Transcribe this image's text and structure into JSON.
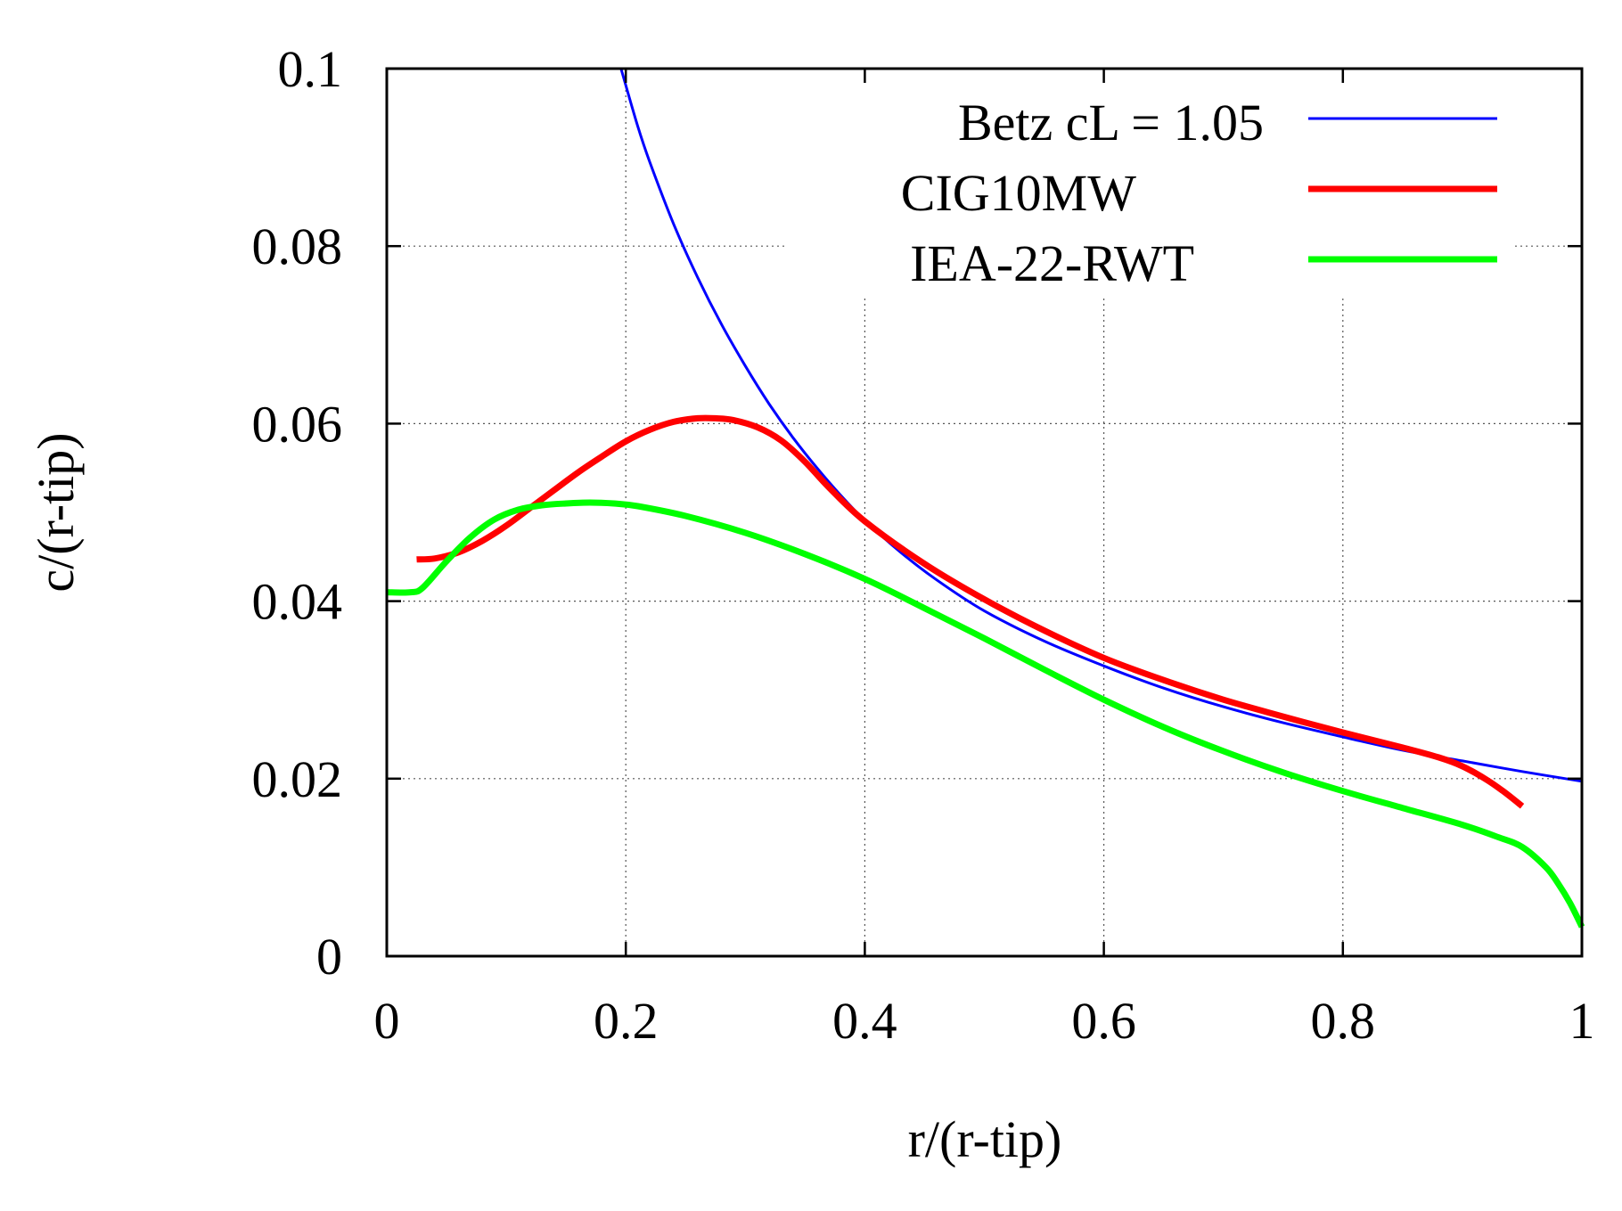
{
  "chart_data": {
    "type": "line",
    "title": "",
    "xlabel": "r/(r-tip)",
    "ylabel": "c/(r-tip)",
    "xlim": [
      0,
      1
    ],
    "ylim": [
      0,
      0.1
    ],
    "xticks": [
      0,
      0.2,
      0.4,
      0.6,
      0.8,
      1
    ],
    "xtick_labels": [
      "0",
      "0.2",
      "0.4",
      "0.6",
      "0.8",
      "1"
    ],
    "yticks": [
      0,
      0.02,
      0.04,
      0.06,
      0.08,
      0.1
    ],
    "ytick_labels": [
      "0",
      "0.02",
      "0.04",
      "0.06",
      "0.08",
      "0.1"
    ],
    "grid": true,
    "legend_position": "top-right",
    "series": [
      {
        "name": "Betz cL = 1.05",
        "color": "#0000ff",
        "width": 3,
        "x": [
          0.196,
          0.21,
          0.22,
          0.24,
          0.26,
          0.28,
          0.3,
          0.32,
          0.34,
          0.36,
          0.38,
          0.4,
          0.43,
          0.46,
          0.5,
          0.55,
          0.6,
          0.65,
          0.7,
          0.75,
          0.8,
          0.85,
          0.9,
          0.95,
          1.0
        ],
        "y": [
          0.1,
          0.0935,
          0.0895,
          0.0825,
          0.0765,
          0.0712,
          0.0665,
          0.0622,
          0.0584,
          0.055,
          0.0519,
          0.0491,
          0.0455,
          0.0424,
          0.0389,
          0.0355,
          0.0327,
          0.0302,
          0.0281,
          0.0263,
          0.0247,
          0.0232,
          0.022,
          0.0208,
          0.0197
        ]
      },
      {
        "name": "CIG10MW",
        "color": "#ff0000",
        "width": 7,
        "x": [
          0.025,
          0.04,
          0.06,
          0.08,
          0.1,
          0.12,
          0.14,
          0.16,
          0.18,
          0.2,
          0.22,
          0.24,
          0.26,
          0.275,
          0.29,
          0.31,
          0.33,
          0.35,
          0.37,
          0.4,
          0.45,
          0.5,
          0.55,
          0.6,
          0.65,
          0.7,
          0.75,
          0.8,
          0.85,
          0.88,
          0.9,
          0.92,
          0.935,
          0.95
        ],
        "y": [
          0.0447,
          0.0448,
          0.0455,
          0.0468,
          0.0485,
          0.0505,
          0.0525,
          0.0545,
          0.0563,
          0.058,
          0.0593,
          0.0602,
          0.0606,
          0.0606,
          0.0604,
          0.0596,
          0.0581,
          0.0557,
          0.0528,
          0.049,
          0.0442,
          0.0402,
          0.0367,
          0.0336,
          0.0311,
          0.0289,
          0.027,
          0.0252,
          0.0235,
          0.0224,
          0.0214,
          0.0199,
          0.0185,
          0.0169
        ]
      },
      {
        "name": "IEA-22-RWT",
        "color": "#00ff00",
        "width": 7,
        "x": [
          0.0,
          0.02,
          0.03,
          0.05,
          0.07,
          0.09,
          0.11,
          0.13,
          0.15,
          0.17,
          0.19,
          0.21,
          0.25,
          0.3,
          0.35,
          0.4,
          0.45,
          0.5,
          0.55,
          0.6,
          0.65,
          0.7,
          0.75,
          0.8,
          0.85,
          0.9,
          0.93,
          0.95,
          0.97,
          0.98,
          0.99,
          1.0
        ],
        "y": [
          0.041,
          0.041,
          0.0415,
          0.0445,
          0.0472,
          0.0492,
          0.0503,
          0.0508,
          0.051,
          0.0511,
          0.051,
          0.0507,
          0.0496,
          0.0477,
          0.0453,
          0.0425,
          0.0392,
          0.0358,
          0.0323,
          0.0289,
          0.0258,
          0.0231,
          0.0207,
          0.0186,
          0.0167,
          0.0148,
          0.0134,
          0.0123,
          0.01,
          0.0082,
          0.006,
          0.0033
        ]
      }
    ]
  }
}
